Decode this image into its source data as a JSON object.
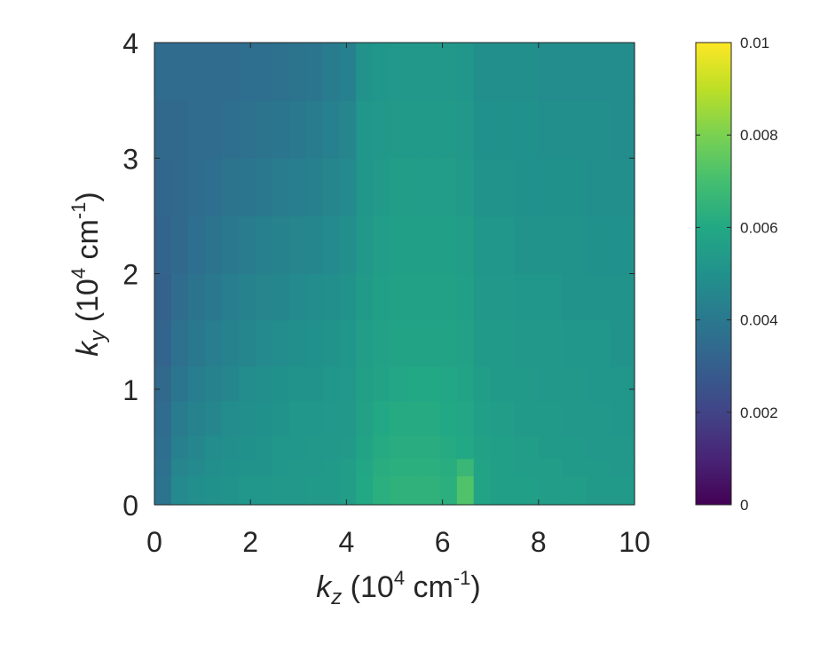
{
  "chart_data": {
    "type": "heatmap",
    "title": "",
    "xlabel": {
      "var": "k",
      "sub": "z",
      "unit_prefix": " (10",
      "exp": "4",
      "unit_mid": " cm",
      "unit_exp": "-1",
      "unit_suffix": ")"
    },
    "ylabel": {
      "var": "k",
      "sub": "y",
      "unit_prefix": " (10",
      "exp": "4",
      "unit_mid": " cm",
      "unit_exp": "-1",
      "unit_suffix": ")"
    },
    "xlim": [
      0,
      10
    ],
    "ylim": [
      0,
      4
    ],
    "xticks": [
      0,
      2,
      4,
      6,
      8,
      10
    ],
    "yticks": [
      0,
      1,
      2,
      3,
      4
    ],
    "xtick_labels": [
      "0",
      "2",
      "4",
      "6",
      "8",
      "10"
    ],
    "ytick_labels": [
      "0",
      "1",
      "2",
      "3",
      "4"
    ],
    "colormap": "viridis",
    "clim": [
      0,
      0.01
    ],
    "colorbar_ticks": [
      0,
      0.002,
      0.004,
      0.006,
      0.008,
      0.01
    ],
    "colorbar_tick_labels": [
      "0",
      "0.002",
      "0.004",
      "0.006",
      "0.008",
      "0.01"
    ],
    "grid": false,
    "x_bins": [
      {
        "x0": 0.0,
        "x1": 0.35
      },
      {
        "x0": 0.35,
        "x1": 0.7
      },
      {
        "x0": 0.7,
        "x1": 1.05
      },
      {
        "x0": 1.05,
        "x1": 1.4
      },
      {
        "x0": 1.4,
        "x1": 1.75
      },
      {
        "x0": 1.75,
        "x1": 2.1
      },
      {
        "x0": 2.1,
        "x1": 2.45
      },
      {
        "x0": 2.45,
        "x1": 2.8
      },
      {
        "x0": 2.8,
        "x1": 3.15
      },
      {
        "x0": 3.15,
        "x1": 3.5
      },
      {
        "x0": 3.5,
        "x1": 3.85
      },
      {
        "x0": 3.85,
        "x1": 4.2
      },
      {
        "x0": 4.2,
        "x1": 4.55
      },
      {
        "x0": 4.55,
        "x1": 4.9
      },
      {
        "x0": 4.9,
        "x1": 5.25
      },
      {
        "x0": 5.25,
        "x1": 5.6
      },
      {
        "x0": 5.6,
        "x1": 5.95
      },
      {
        "x0": 5.95,
        "x1": 6.3
      },
      {
        "x0": 6.3,
        "x1": 6.65
      },
      {
        "x0": 6.65,
        "x1": 7.0
      },
      {
        "x0": 7.0,
        "x1": 7.5
      },
      {
        "x0": 7.5,
        "x1": 8.0
      },
      {
        "x0": 8.0,
        "x1": 8.5
      },
      {
        "x0": 8.5,
        "x1": 9.0
      },
      {
        "x0": 9.0,
        "x1": 9.5
      },
      {
        "x0": 9.5,
        "x1": 10.0
      }
    ],
    "y_edges": [
      0,
      0.25,
      0.4,
      0.6,
      0.9,
      1.2,
      1.6,
      2.0,
      2.5,
      3.0,
      3.5,
      4.0
    ],
    "values": [
      [
        0.0038,
        0.0047,
        0.0049,
        0.005,
        0.0051,
        0.0052,
        0.0052,
        0.0053,
        0.0053,
        0.0054,
        0.0054,
        0.0055,
        0.006,
        0.0063,
        0.0064,
        0.0064,
        0.0064,
        0.0063,
        0.0072,
        0.0058,
        0.0056,
        0.0056,
        0.0055,
        0.0055,
        0.0054,
        0.0054
      ],
      [
        0.0037,
        0.0045,
        0.0047,
        0.0049,
        0.005,
        0.0051,
        0.0051,
        0.0052,
        0.0053,
        0.0053,
        0.0054,
        0.0055,
        0.0059,
        0.0062,
        0.0063,
        0.0063,
        0.0063,
        0.0062,
        0.0067,
        0.0058,
        0.0056,
        0.0055,
        0.0055,
        0.0054,
        0.0054,
        0.0053
      ],
      [
        0.0036,
        0.0043,
        0.0046,
        0.0048,
        0.0049,
        0.005,
        0.0051,
        0.0052,
        0.0052,
        0.0053,
        0.0053,
        0.0054,
        0.0058,
        0.0061,
        0.0062,
        0.0062,
        0.0062,
        0.0061,
        0.006,
        0.0057,
        0.0056,
        0.0055,
        0.0054,
        0.0054,
        0.0053,
        0.0053
      ],
      [
        0.0035,
        0.0041,
        0.0044,
        0.0046,
        0.0048,
        0.0049,
        0.005,
        0.0051,
        0.0052,
        0.0052,
        0.0053,
        0.0053,
        0.0057,
        0.006,
        0.0061,
        0.0061,
        0.0061,
        0.006,
        0.0059,
        0.0056,
        0.0055,
        0.0054,
        0.0054,
        0.0053,
        0.0053,
        0.0052
      ],
      [
        0.0034,
        0.0039,
        0.0042,
        0.0044,
        0.0046,
        0.0048,
        0.0049,
        0.005,
        0.0051,
        0.0051,
        0.0052,
        0.0053,
        0.0056,
        0.0058,
        0.0059,
        0.006,
        0.006,
        0.0059,
        0.0058,
        0.0055,
        0.0054,
        0.0054,
        0.0053,
        0.0053,
        0.0052,
        0.0052
      ],
      [
        0.0032,
        0.0037,
        0.004,
        0.0042,
        0.0044,
        0.0046,
        0.0047,
        0.0048,
        0.0049,
        0.005,
        0.0051,
        0.0052,
        0.0055,
        0.0057,
        0.0058,
        0.0058,
        0.0058,
        0.0058,
        0.0057,
        0.0054,
        0.0054,
        0.0053,
        0.0053,
        0.0052,
        0.0052,
        0.0051
      ],
      [
        0.0031,
        0.0035,
        0.0038,
        0.004,
        0.0042,
        0.0044,
        0.0045,
        0.0046,
        0.0047,
        0.0048,
        0.0049,
        0.0051,
        0.0054,
        0.0056,
        0.0057,
        0.0057,
        0.0057,
        0.0057,
        0.0056,
        0.0053,
        0.0053,
        0.0052,
        0.0052,
        0.0051,
        0.0051,
        0.0051
      ],
      [
        0.0032,
        0.0034,
        0.0036,
        0.0038,
        0.004,
        0.0041,
        0.0043,
        0.0044,
        0.0045,
        0.0046,
        0.0047,
        0.0049,
        0.0053,
        0.0055,
        0.0056,
        0.0056,
        0.0056,
        0.0056,
        0.0055,
        0.0052,
        0.0052,
        0.0051,
        0.0051,
        0.0051,
        0.005,
        0.005
      ],
      [
        0.0033,
        0.0034,
        0.0035,
        0.0036,
        0.0038,
        0.0039,
        0.004,
        0.0041,
        0.0042,
        0.0043,
        0.0045,
        0.0047,
        0.0052,
        0.0054,
        0.0055,
        0.0055,
        0.0055,
        0.0055,
        0.0054,
        0.0051,
        0.0051,
        0.005,
        0.005,
        0.005,
        0.0049,
        0.0049
      ],
      [
        0.0034,
        0.0034,
        0.0035,
        0.0035,
        0.0036,
        0.0037,
        0.0038,
        0.0039,
        0.004,
        0.0041,
        0.0043,
        0.0045,
        0.0052,
        0.0053,
        0.0054,
        0.0054,
        0.0054,
        0.0054,
        0.0053,
        0.005,
        0.005,
        0.005,
        0.0049,
        0.0049,
        0.0049,
        0.0048
      ],
      [
        0.0035,
        0.0035,
        0.0035,
        0.0035,
        0.0035,
        0.0036,
        0.0036,
        0.0037,
        0.0038,
        0.0039,
        0.0041,
        0.0043,
        0.0051,
        0.0052,
        0.0053,
        0.0053,
        0.0053,
        0.0053,
        0.0052,
        0.0049,
        0.0049,
        0.0049,
        0.0048,
        0.0048,
        0.0048,
        0.0048
      ]
    ]
  }
}
